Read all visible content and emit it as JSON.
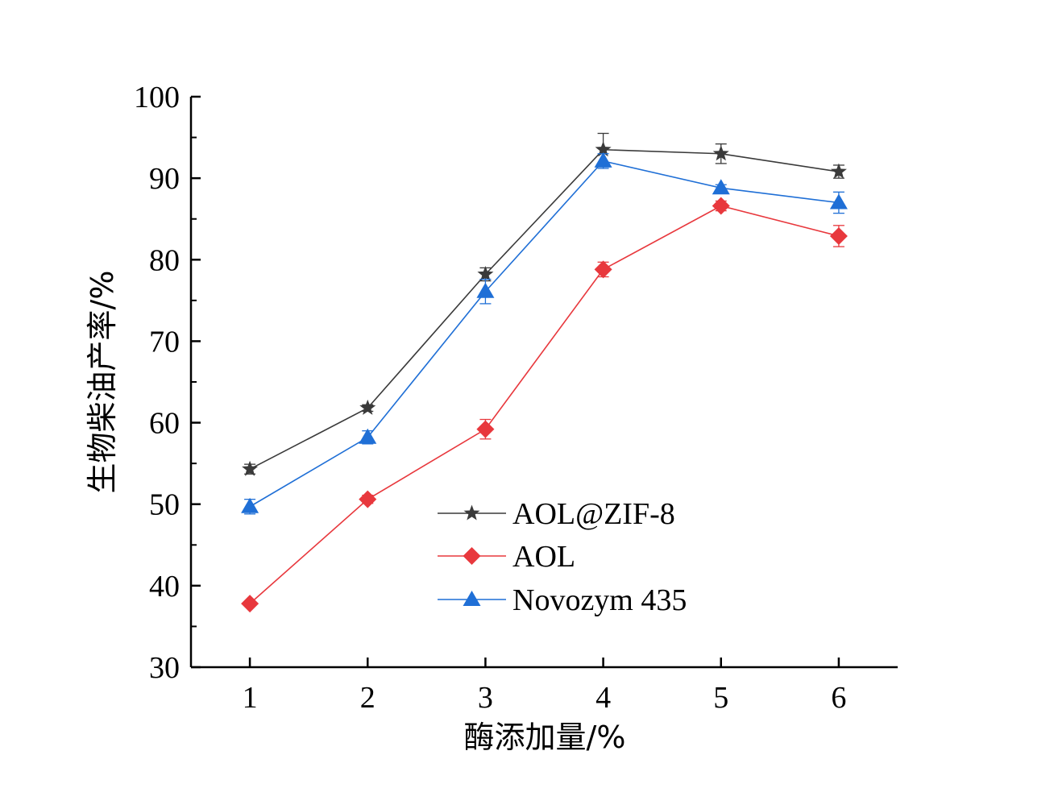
{
  "chart_data": {
    "type": "line",
    "title": "",
    "xlabel": "酶添加量/%",
    "ylabel": "生物柴油产率/%",
    "x": [
      1,
      2,
      3,
      4,
      5,
      6
    ],
    "xticks": [
      "1",
      "2",
      "3",
      "4",
      "5",
      "6"
    ],
    "yticks": [
      "30",
      "40",
      "50",
      "60",
      "70",
      "80",
      "90",
      "100"
    ],
    "xlim": [
      0.5,
      6.5
    ],
    "ylim": [
      30,
      100
    ],
    "grid": false,
    "legend_position": "center",
    "series": [
      {
        "name": "AOL@ZIF-8",
        "marker": "star",
        "color": "#3a3a3a",
        "values": [
          54.3,
          61.8,
          78.2,
          93.5,
          93.0,
          90.8
        ],
        "errors": [
          0.6,
          0.4,
          0.8,
          2.0,
          1.2,
          0.8
        ]
      },
      {
        "name": "AOL",
        "marker": "diamond",
        "color": "#e8383d",
        "values": [
          37.8,
          50.6,
          59.2,
          78.8,
          86.6,
          82.9
        ],
        "errors": [
          0.3,
          0.5,
          1.2,
          0.9,
          0.6,
          1.3
        ]
      },
      {
        "name": "Novozym 435",
        "marker": "triangle",
        "color": "#1f6fd6",
        "values": [
          49.7,
          58.2,
          76.1,
          92.1,
          88.8,
          87.0
        ],
        "errors": [
          0.9,
          0.8,
          1.5,
          0.9,
          0.4,
          1.3
        ]
      }
    ]
  }
}
